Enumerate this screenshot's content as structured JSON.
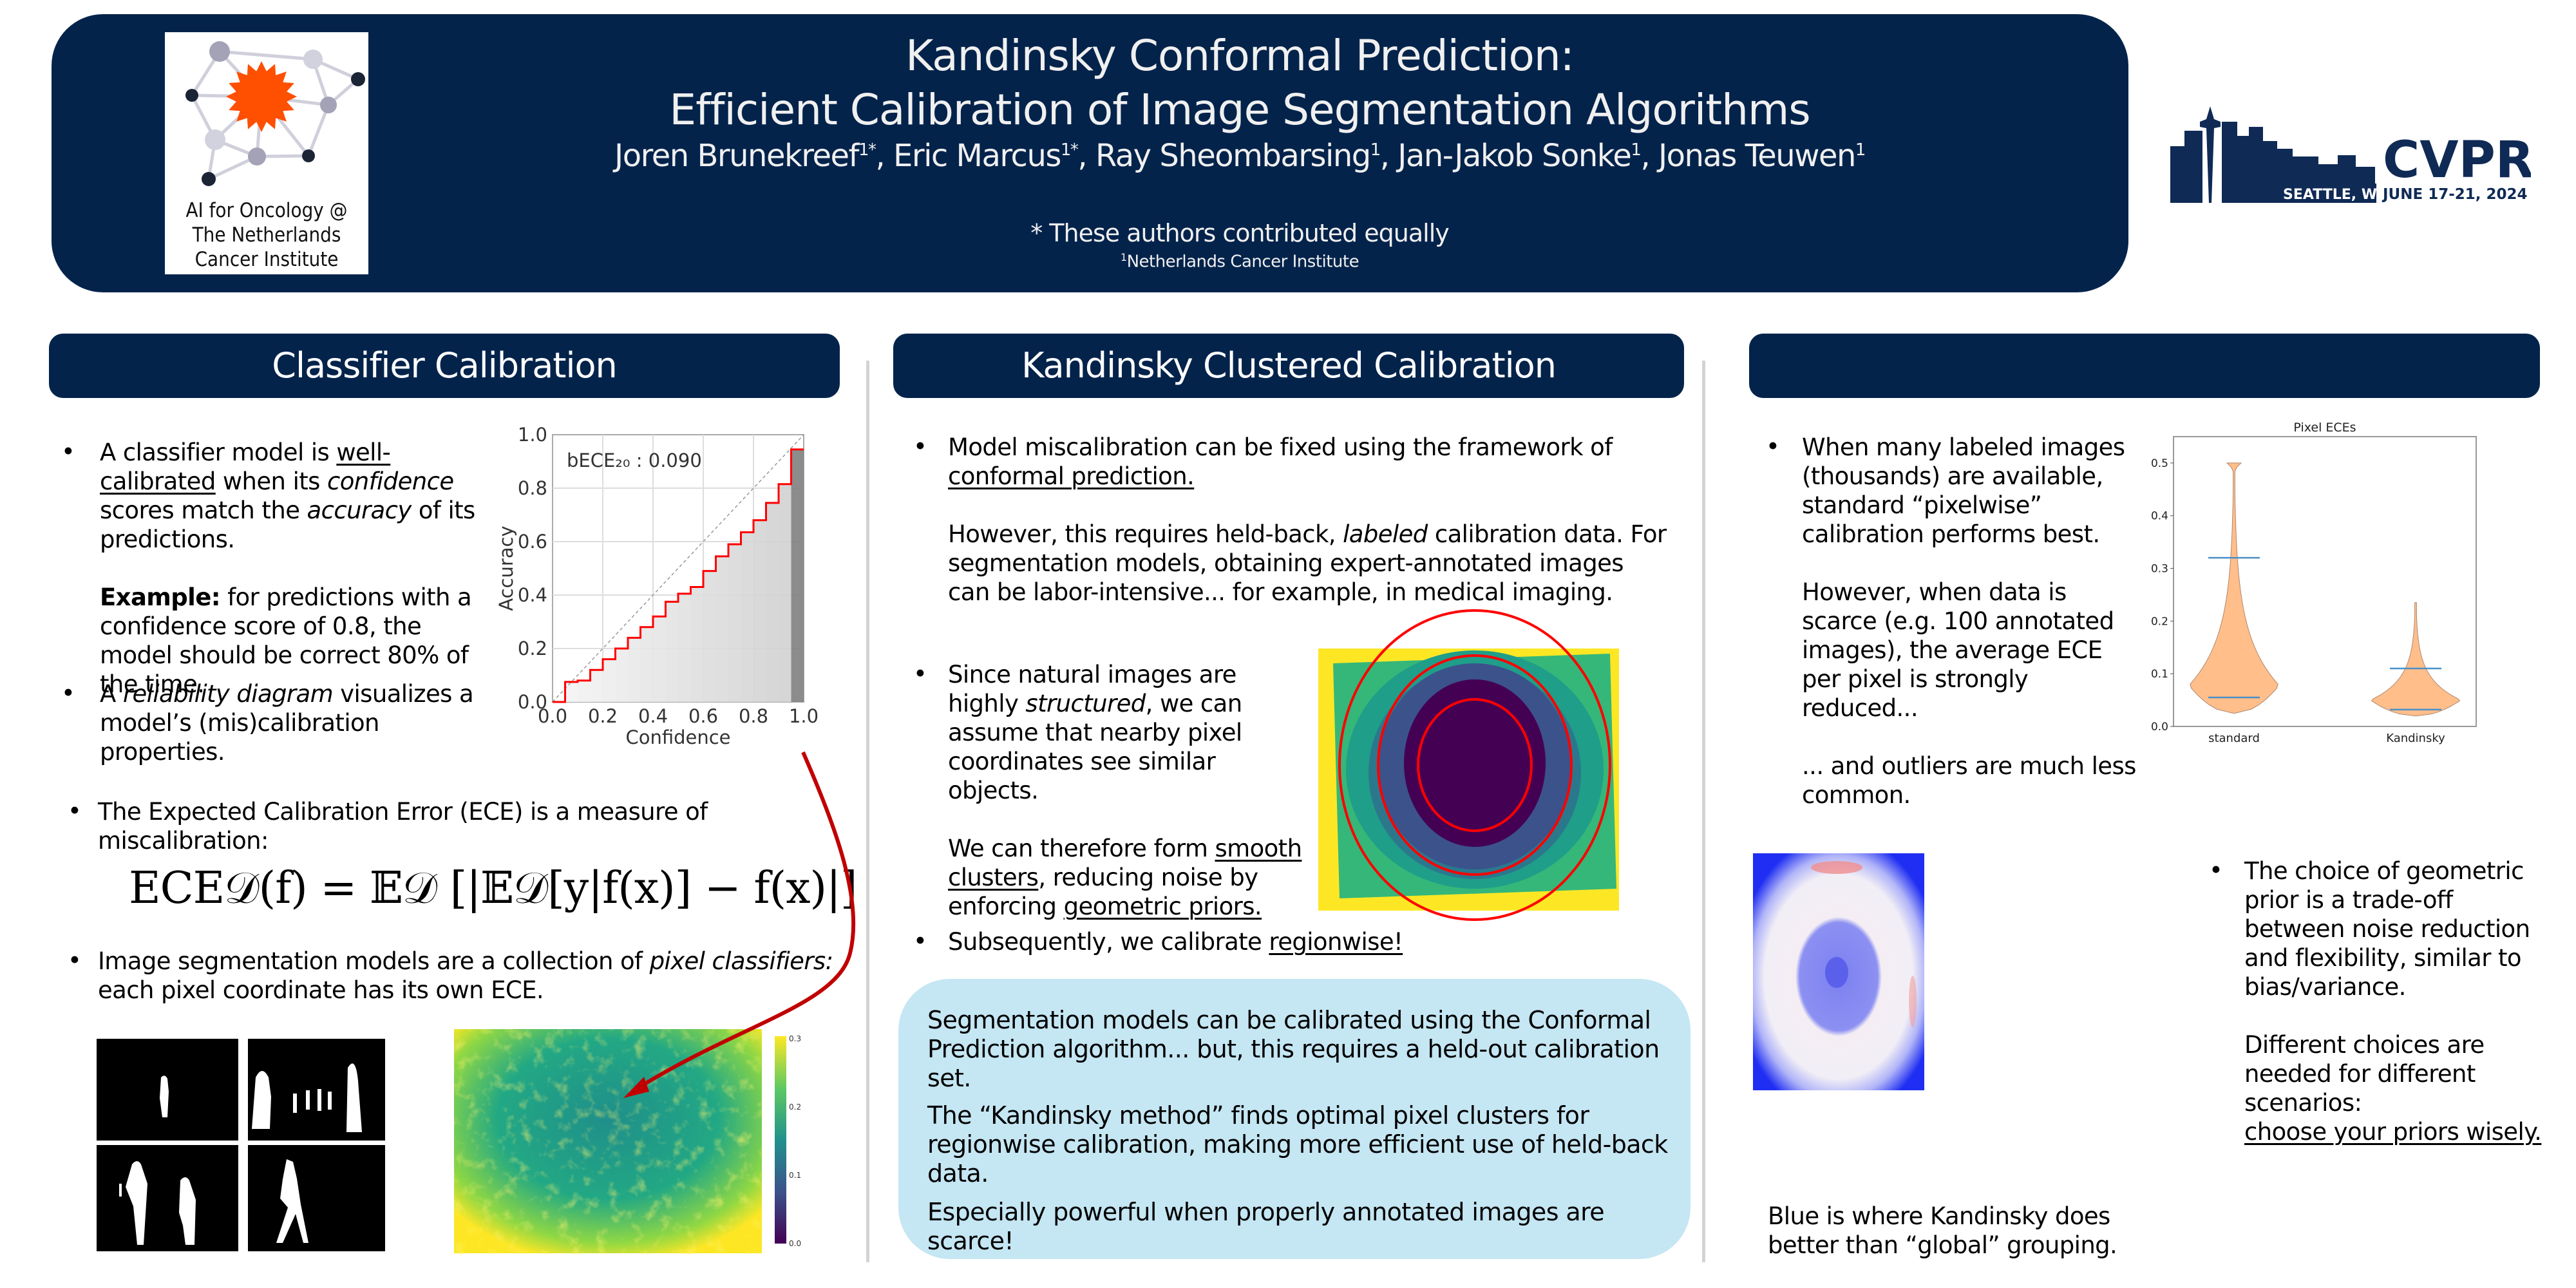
{
  "header": {
    "title_line1": "Kandinsky Conformal Prediction:",
    "title_line2": "Efficient Calibration of Image Segmentation Algorithms",
    "authors": [
      {
        "name": "Joren Brunekreef",
        "sup": "1*"
      },
      {
        "name": "Eric Marcus",
        "sup": "1*"
      },
      {
        "name": "Ray Sheombarsing",
        "sup": "1"
      },
      {
        "name": "Jan-Jakob Sonke",
        "sup": "1"
      },
      {
        "name": "Jonas Teuwen",
        "sup": "1"
      }
    ],
    "equal_note": "* These authors contributed equally",
    "affiliation_sup": "1",
    "affiliation": "Netherlands Cancer Institute",
    "logo": {
      "text_line1": "AI for Oncology @",
      "text_line2": "The Netherlands",
      "text_line3": "Cancer Institute",
      "accent_color": "#ff4f00"
    },
    "conference": {
      "name": "CVPR",
      "location": "SEATTLE, WA",
      "dates": "JUNE 17-21, 2024"
    }
  },
  "colors": {
    "navy": "#03234b",
    "highlight_box": "#c5e6f3",
    "arrow": "#c00000",
    "violin_fill": "#ffbe8a",
    "violin_line": "#4a90c8"
  },
  "columns": [
    {
      "heading": "Classifier Calibration",
      "bullet1": {
        "p1_pre": "A classifier model is ",
        "p1_link": "well-calibrated",
        "p1_mid1": " when its ",
        "p1_em1": "confidence",
        "p1_mid2": " scores match the ",
        "p1_em2": "accuracy",
        "p1_post": " of its predictions.",
        "p2_bold": "Example:",
        "p2_text": " for predictions with a confidence score of 0.8, the model should be correct 80% of the time."
      },
      "bullet2": {
        "pre": "A ",
        "em": "reliability diagram",
        "post": " visualizes a model’s (mis)calibration properties."
      },
      "bullet3": "The Expected Calibration Error (ECE) is a measure of miscalibration:",
      "formula": "ECE𝒟(f) = 𝔼𝒟 [|𝔼𝒟[y|f(x)] − f(x)|]",
      "bullet4": {
        "pre": "Image segmentation models are a collection of ",
        "em": "pixel classifiers:",
        "post": " each pixel coordinate has its own ECE."
      },
      "heatmap_colorbar_ticks": [
        "0.3",
        "0.2",
        "0.1",
        "0.0"
      ]
    },
    {
      "heading": "Kandinsky Clustered Calibration",
      "bullet1": {
        "pre": "Model miscalibration can be fixed using the framework of ",
        "link": "conformal prediction.",
        "p2_pre": "However, this requires held-back, ",
        "p2_em": "labeled",
        "p2_post": " calibration data. For segmentation models, obtaining expert-annotated images can be labor-intensive... for example, in medical imaging."
      },
      "bullet2": {
        "pre": "Since natural images are highly ",
        "em": "structured",
        "post": ", we can assume that nearby pixel coordinates see similar objects.",
        "p2_pre": "We can therefore form ",
        "p2_link1": "smooth clusters",
        "p2_mid": ", reducing noise by enforcing ",
        "p2_link2": "geometric priors."
      },
      "bullet3": {
        "pre": "Subsequently, we calibrate ",
        "link": "regionwise!"
      },
      "box": {
        "p1": "Segmentation models can be calibrated using the Conformal Prediction algorithm... but, this requires a held-out calibration set.",
        "p2": "The “Kandinsky method” finds optimal pixel clusters for regionwise calibration, making more efficient use of held-back data.",
        "p3": "Especially powerful when properly annotated images are scarce!"
      }
    },
    {
      "heading": "",
      "bullet1": {
        "p1": "When many labeled images (thousands) are available, standard “pixelwise” calibration performs best.",
        "p2": "However, when data is scarce (e.g. 100 annotated images), the average ECE per pixel is strongly reduced...",
        "p3": "... and outliers are much less common."
      },
      "bullet2": {
        "p1": "The choice of geometric prior is a trade-off between noise reduction and flexibility, similar to bias/variance.",
        "p2": "Different choices are needed for different scenarios:",
        "link": "choose your priors wisely."
      },
      "caption": "Blue is where Kandinsky does better than “global” grouping."
    }
  ],
  "chart_data": [
    {
      "type": "bar",
      "title": "",
      "annotation": "bECE₂₀ : 0.090",
      "xlabel": "Confidence",
      "ylabel": "Accuracy",
      "xlim": [
        0,
        1
      ],
      "ylim": [
        0,
        1
      ],
      "grid": true,
      "x_ticks": [
        "0.0",
        "0.2",
        "0.4",
        "0.6",
        "0.8",
        "1.0"
      ],
      "y_ticks": [
        "0.0",
        "0.2",
        "0.4",
        "0.6",
        "0.8",
        "1.0"
      ],
      "bin_width": 0.05,
      "bin_starts": [
        0.0,
        0.05,
        0.1,
        0.15,
        0.2,
        0.25,
        0.3,
        0.35,
        0.4,
        0.45,
        0.5,
        0.55,
        0.6,
        0.65,
        0.7,
        0.75,
        0.8,
        0.85,
        0.9,
        0.95
      ],
      "values": [
        0.0,
        0.075,
        0.08,
        0.12,
        0.16,
        0.2,
        0.24,
        0.28,
        0.32,
        0.375,
        0.405,
        0.43,
        0.49,
        0.545,
        0.59,
        0.635,
        0.68,
        0.745,
        0.815,
        0.945
      ],
      "reference_line": "diagonal y = x (dashed)"
    },
    {
      "type": "violin",
      "title": "Pixel ECEs",
      "categories": [
        "standard",
        "Kandinsky"
      ],
      "ylim": [
        0,
        0.55
      ],
      "y_ticks": [
        "0.0",
        "0.1",
        "0.2",
        "0.3",
        "0.4",
        "0.5"
      ],
      "series": [
        {
          "name": "standard",
          "min": 0.025,
          "max": 0.5,
          "mode": 0.078,
          "markers": [
            0.32,
            0.055
          ]
        },
        {
          "name": "Kandinsky",
          "min": 0.02,
          "max": 0.235,
          "mode": 0.05,
          "markers": [
            0.11,
            0.032
          ]
        }
      ]
    }
  ]
}
